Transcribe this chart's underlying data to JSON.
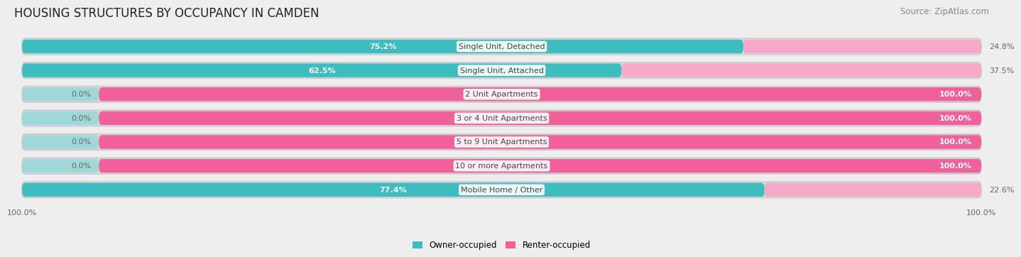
{
  "title": "HOUSING STRUCTURES BY OCCUPANCY IN CAMDEN",
  "source": "Source: ZipAtlas.com",
  "categories": [
    "Single Unit, Detached",
    "Single Unit, Attached",
    "2 Unit Apartments",
    "3 or 4 Unit Apartments",
    "5 to 9 Unit Apartments",
    "10 or more Apartments",
    "Mobile Home / Other"
  ],
  "owner_pct": [
    75.2,
    62.5,
    0.0,
    0.0,
    0.0,
    0.0,
    77.4
  ],
  "renter_pct": [
    24.8,
    37.5,
    100.0,
    100.0,
    100.0,
    100.0,
    22.6
  ],
  "owner_color": "#3dbdc0",
  "renter_color_strong": "#f0609a",
  "renter_color_light": "#f5a8c8",
  "owner_color_light": "#a0d8da",
  "bg_color": "#eeeeee",
  "bar_bg_color": "#d8d8d8",
  "bar_row_bg": "#e8e8e8",
  "title_fontsize": 12,
  "source_fontsize": 8.5,
  "label_fontsize": 8,
  "pct_fontsize": 8,
  "tick_fontsize": 8,
  "legend_fontsize": 8.5,
  "owner_stub_pct": 8.0,
  "renter_stub_pct": 8.0
}
